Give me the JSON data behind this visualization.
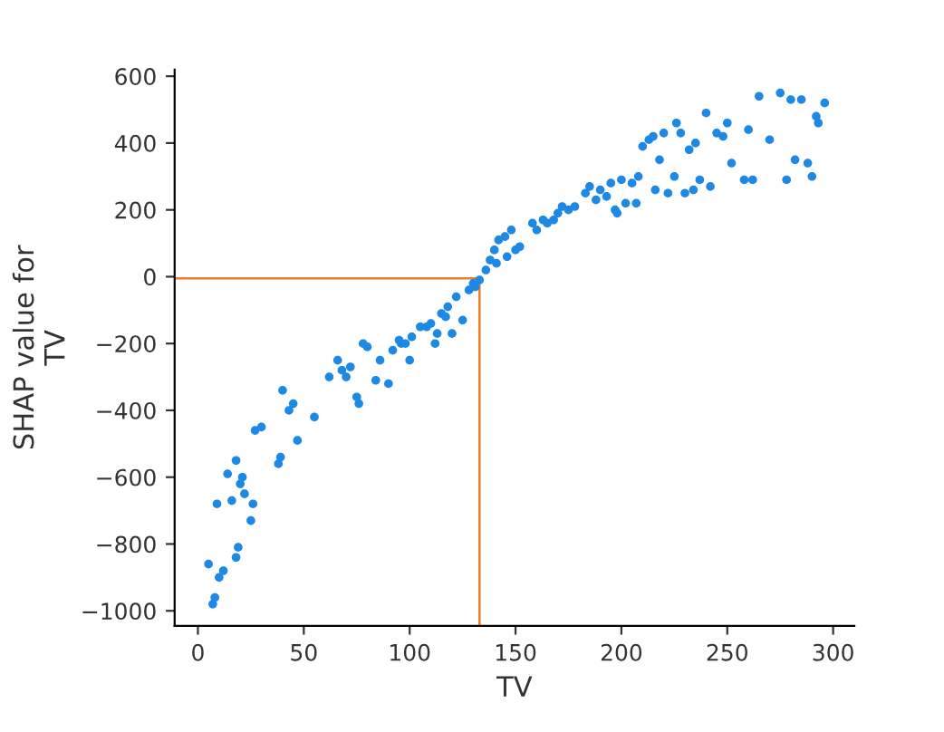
{
  "chart_data": {
    "type": "scatter",
    "xlabel": "TV",
    "ylabel": "SHAP value for\nTV",
    "xlim": [
      -11,
      310
    ],
    "ylim": [
      -1045,
      620
    ],
    "xticks": [
      0,
      50,
      100,
      150,
      200,
      250,
      300
    ],
    "yticks": [
      {
        "value": -1000,
        "label": "−1000"
      },
      {
        "value": -800,
        "label": "−800"
      },
      {
        "value": -600,
        "label": "−600"
      },
      {
        "value": -400,
        "label": "−400"
      },
      {
        "value": -200,
        "label": "−200"
      },
      0,
      200,
      400,
      600
    ],
    "marker": "circle",
    "grid": false,
    "legend": false,
    "ref_lines": [
      {
        "axis": "x",
        "value": 133,
        "color": "#f07b24"
      },
      {
        "axis": "y",
        "value": -5,
        "color": "#f07b24"
      }
    ],
    "series": [
      {
        "color": "#1e88e5",
        "x": [
          5,
          7,
          8,
          10,
          9,
          12,
          14,
          16,
          18,
          19,
          18,
          20,
          21,
          22,
          25,
          26,
          27,
          30,
          38,
          39,
          40,
          43,
          45,
          47,
          55,
          62,
          66,
          68,
          70,
          72,
          75,
          76,
          78,
          80,
          84,
          86,
          90,
          92,
          95,
          96,
          98,
          100,
          101,
          105,
          108,
          110,
          112,
          113,
          115,
          117,
          118,
          120,
          122,
          125,
          128,
          130,
          131,
          133,
          136,
          138,
          140,
          141,
          142,
          145,
          146,
          148,
          150,
          152,
          158,
          160,
          163,
          165,
          168,
          170,
          172,
          175,
          178,
          183,
          185,
          188,
          190,
          193,
          195,
          197,
          198,
          200,
          202,
          205,
          207,
          208,
          210,
          213,
          215,
          216,
          218,
          220,
          222,
          225,
          226,
          228,
          230,
          232,
          234,
          235,
          237,
          240,
          242,
          245,
          248,
          250,
          252,
          258,
          260,
          262,
          265,
          270,
          275,
          278,
          280,
          282,
          285,
          288,
          290,
          292,
          293,
          296
        ],
        "values": [
          -860,
          -980,
          -960,
          -900,
          -680,
          -880,
          -590,
          -670,
          -840,
          -810,
          -550,
          -620,
          -600,
          -650,
          -730,
          -680,
          -460,
          -450,
          -560,
          -540,
          -340,
          -400,
          -380,
          -490,
          -420,
          -300,
          -250,
          -280,
          -300,
          -270,
          -360,
          -380,
          -200,
          -210,
          -310,
          -250,
          -320,
          -220,
          -190,
          -200,
          -200,
          -250,
          -180,
          -150,
          -150,
          -140,
          -200,
          -170,
          -110,
          -120,
          -90,
          -170,
          -60,
          -130,
          -40,
          -20,
          -30,
          -10,
          20,
          50,
          80,
          40,
          110,
          120,
          60,
          140,
          80,
          90,
          160,
          140,
          170,
          160,
          170,
          190,
          210,
          200,
          210,
          250,
          270,
          230,
          260,
          240,
          280,
          200,
          190,
          290,
          220,
          280,
          220,
          300,
          390,
          410,
          420,
          260,
          350,
          430,
          250,
          300,
          460,
          430,
          250,
          380,
          260,
          400,
          290,
          490,
          270,
          430,
          420,
          460,
          340,
          290,
          440,
          290,
          540,
          410,
          550,
          290,
          530,
          350,
          530,
          340,
          300,
          480,
          460,
          520
        ]
      }
    ]
  }
}
